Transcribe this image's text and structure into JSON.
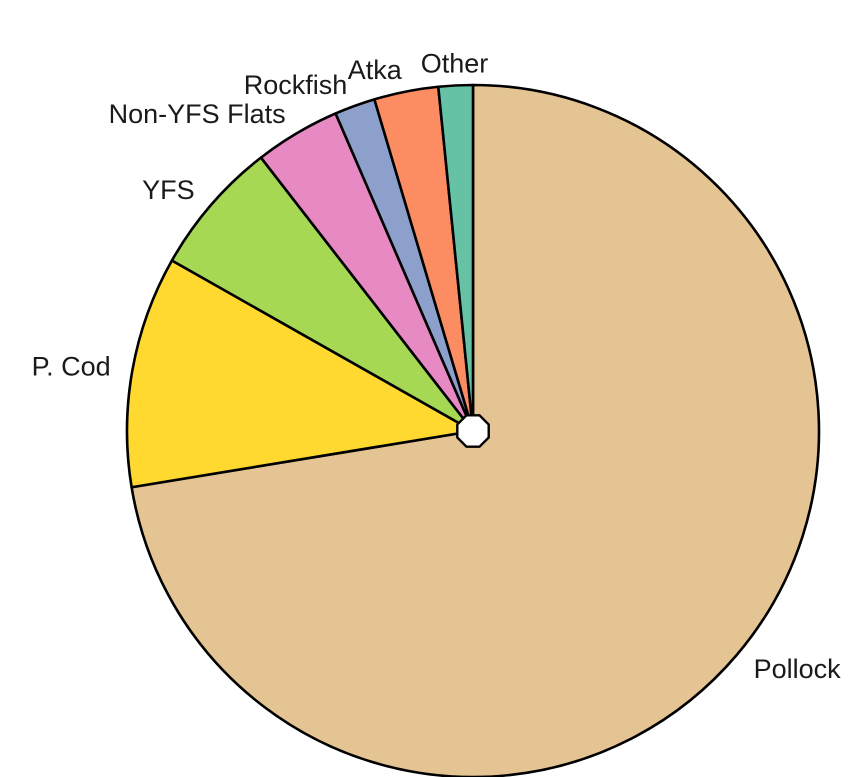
{
  "chart_data": {
    "type": "pie",
    "title": "",
    "start": "12 o'clock",
    "direction": "clockwise",
    "slices": [
      {
        "label": "Pollock",
        "value": 72.4,
        "color": "#E5C494"
      },
      {
        "label": "P. Cod",
        "value": 10.8,
        "color": "#FFD92F"
      },
      {
        "label": "YFS",
        "value": 6.3,
        "color": "#A6D854"
      },
      {
        "label": "Non-YFS Flats",
        "value": 4.0,
        "color": "#E78AC3"
      },
      {
        "label": "Rockfish",
        "value": 1.9,
        "color": "#8DA0CB"
      },
      {
        "label": "Atka",
        "value": 3.0,
        "color": "#FC8D62"
      },
      {
        "label": "Other",
        "value": 1.6,
        "color": "#66C2A5"
      }
    ]
  }
}
